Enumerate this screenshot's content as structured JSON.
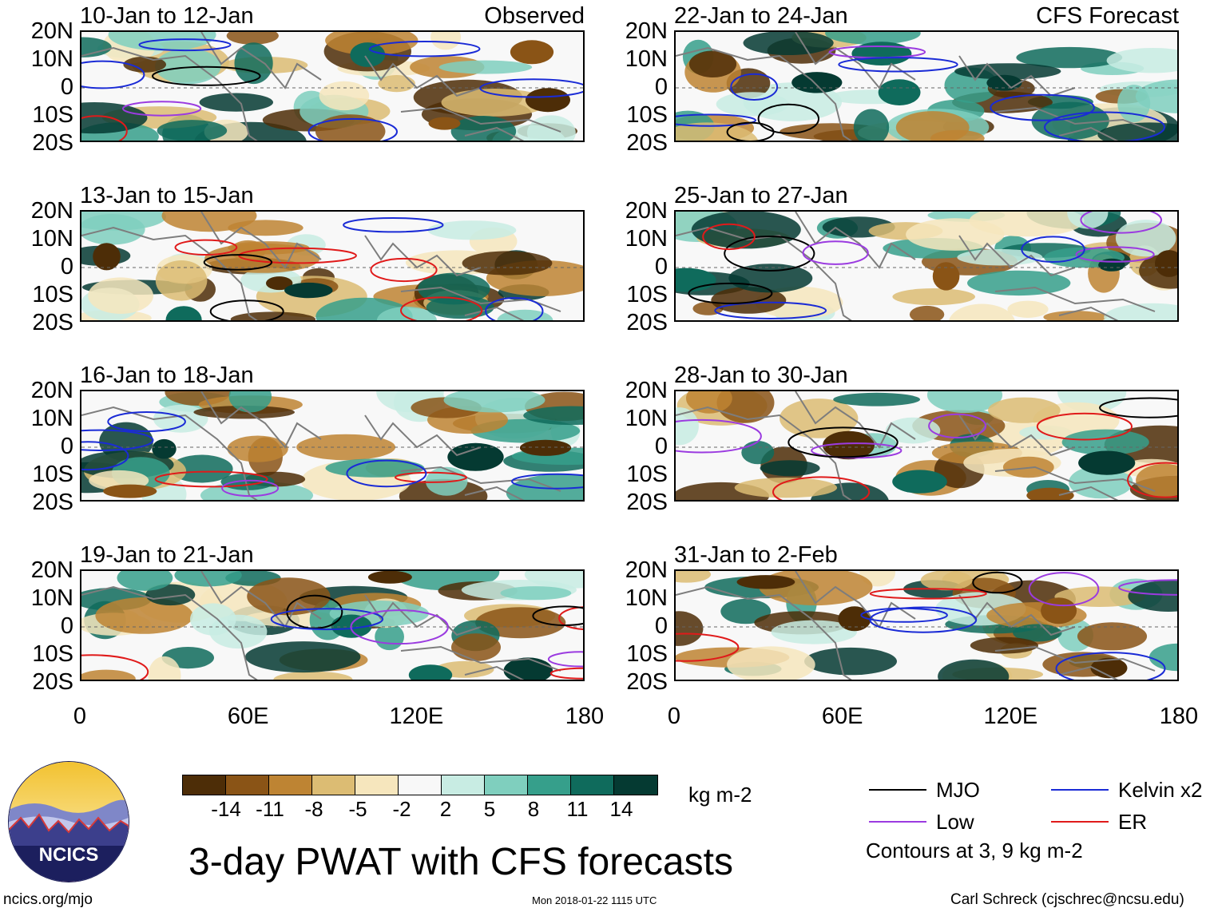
{
  "chart_data": {
    "type": "heatmap",
    "title": "3-day PWAT with CFS forecasts",
    "variable": "PWAT anomaly",
    "units": "kg m-2",
    "colorbar": {
      "ticks": [
        "-14",
        "-11",
        "-8",
        "-5",
        "-2",
        "2",
        "5",
        "8",
        "11",
        "14"
      ],
      "colors": [
        "#4d2d07",
        "#8a5416",
        "#be8433",
        "#dcbc73",
        "#f6e6bd",
        "#f8f8f8",
        "#c8ece3",
        "#7fcfbe",
        "#369f8b",
        "#0f6b5c",
        "#053a32"
      ]
    },
    "x_ticks": [
      "0",
      "60E",
      "120E",
      "180"
    ],
    "xlim": [
      0,
      180
    ],
    "y_ticks": [
      "20N",
      "10N",
      "0",
      "10S",
      "20S"
    ],
    "ylim": [
      -20,
      20
    ],
    "columns": [
      {
        "label": "Observed",
        "panels": [
          {
            "period": "10-Jan to 12-Jan"
          },
          {
            "period": "13-Jan to 15-Jan"
          },
          {
            "period": "16-Jan to 18-Jan"
          },
          {
            "period": "19-Jan to 21-Jan"
          }
        ]
      },
      {
        "label": "CFS Forecast",
        "panels": [
          {
            "period": "22-Jan to 24-Jan"
          },
          {
            "period": "25-Jan to 27-Jan"
          },
          {
            "period": "28-Jan to 30-Jan"
          },
          {
            "period": "31-Jan to 2-Feb"
          }
        ]
      }
    ],
    "contour_legend": [
      {
        "name": "MJO",
        "color": "#000000"
      },
      {
        "name": "Kelvin x2",
        "color": "#1a2bd6"
      },
      {
        "name": "Low",
        "color": "#9b3be0"
      },
      {
        "name": "ER",
        "color": "#e01a1a"
      }
    ],
    "contour_note": "Contours at 3, 9 kg m-2"
  },
  "branding": {
    "logo_text": "NCICS",
    "site": "ncics.org/mjo",
    "timestamp": "Mon 2018-01-22 1115 UTC",
    "author": "Carl Schreck (cjschrec@ncsu.edu)"
  }
}
